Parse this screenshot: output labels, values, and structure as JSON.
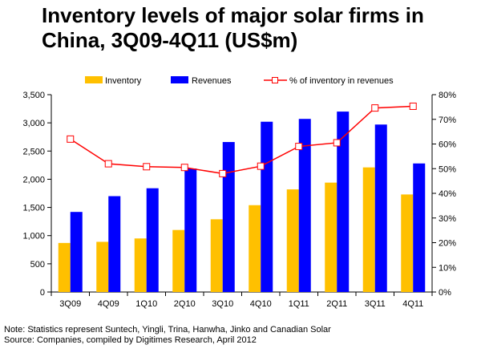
{
  "title": "Inventory levels of major solar firms in China, 3Q09-4Q11 (US$m)",
  "note": "Note: Statistics represent Suntech, Yingli, Trina, Hanwha, Jinko and Canadian Solar",
  "source": "Source: Companies, compiled by Digitimes Research, April 2012",
  "colors": {
    "inventory": "#FFC000",
    "revenues": "#0000FF",
    "ratio_line": "#FF0000",
    "ratio_marker_fill": "#FFFFFF"
  },
  "chart_data": {
    "type": "bar",
    "title": "Inventory levels of major solar firms in China, 3Q09-4Q11 (US$m)",
    "categories": [
      "3Q09",
      "4Q09",
      "1Q10",
      "2Q10",
      "3Q10",
      "4Q10",
      "1Q11",
      "2Q11",
      "3Q11",
      "4Q11"
    ],
    "series": [
      {
        "name": "Inventory",
        "type": "bar",
        "axis": "left",
        "values": [
          870,
          890,
          950,
          1100,
          1290,
          1540,
          1820,
          1940,
          2210,
          1730
        ]
      },
      {
        "name": "Revenues",
        "type": "bar",
        "axis": "left",
        "values": [
          1420,
          1700,
          1840,
          2190,
          2660,
          3020,
          3070,
          3200,
          2970,
          2280
        ]
      },
      {
        "name": "% of inventory in revenues",
        "type": "line",
        "axis": "right",
        "values": [
          62,
          52,
          50.8,
          50.5,
          48,
          51,
          59,
          60.5,
          74.6,
          75.3
        ]
      }
    ],
    "left_axis": {
      "ylim": [
        0,
        3500
      ],
      "ticks": [
        0,
        500,
        1000,
        1500,
        2000,
        2500,
        3000,
        3500
      ],
      "tick_labels": [
        "0",
        "500",
        "1,000",
        "1,500",
        "2,000",
        "2,500",
        "3,000",
        "3,500"
      ]
    },
    "right_axis": {
      "ylim": [
        0,
        80
      ],
      "ticks": [
        0,
        10,
        20,
        30,
        40,
        50,
        60,
        70,
        80
      ],
      "tick_labels": [
        "0%",
        "10%",
        "20%",
        "30%",
        "40%",
        "50%",
        "60%",
        "70%",
        "80%"
      ]
    },
    "grid": false,
    "legend_position": "top"
  }
}
